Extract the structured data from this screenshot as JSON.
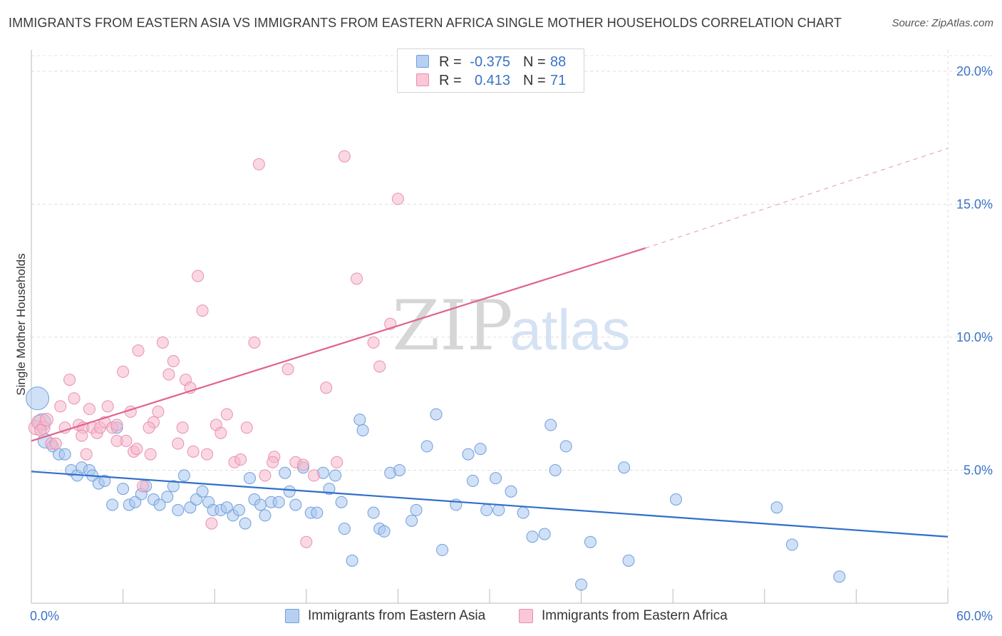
{
  "title": "IMMIGRANTS FROM EASTERN ASIA VS IMMIGRANTS FROM EASTERN AFRICA SINGLE MOTHER HOUSEHOLDS CORRELATION CHART",
  "source": "Source: ZipAtlas.com",
  "watermark": {
    "part1": "ZIP",
    "part2": "atlas"
  },
  "legend_top": {
    "rows": [
      {
        "r_label": "R =",
        "r_value": "-0.375",
        "n_label": "N =",
        "n_value": "88"
      },
      {
        "r_label": "R =",
        "r_value": "0.413",
        "n_label": "N =",
        "n_value": "71"
      }
    ]
  },
  "legend_bottom": {
    "items": [
      {
        "label": "Immigrants from Eastern Asia"
      },
      {
        "label": "Immigrants from Eastern Africa"
      }
    ]
  },
  "colors": {
    "blue_fill": "#a9c7ef",
    "blue_stroke": "#6f9fdc",
    "blue_line": "#2f6fcb",
    "pink_fill": "#f6b8cc",
    "pink_stroke": "#ea8fac",
    "pink_line": "#e0648c",
    "tick_label": "#3b73c6",
    "grid": "#dddddd"
  },
  "chart_data": {
    "type": "scatter",
    "title": "IMMIGRANTS FROM EASTERN ASIA VS IMMIGRANTS FROM EASTERN AFRICA SINGLE MOTHER HOUSEHOLDS CORRELATION CHART",
    "xlabel": "",
    "ylabel": "Single Mother Households",
    "xlim": [
      0,
      60
    ],
    "ylim": [
      0,
      20.8
    ],
    "x_tick_labels": [
      {
        "value": 0,
        "label": "0.0%"
      },
      {
        "value": 60,
        "label": "60.0%"
      }
    ],
    "x_minor_ticks": [
      0,
      6,
      12,
      18,
      24,
      30,
      36,
      42,
      48,
      54,
      60
    ],
    "y_ticks": [
      {
        "value": 5,
        "label": "5.0%"
      },
      {
        "value": 10,
        "label": "10.0%"
      },
      {
        "value": 15,
        "label": "15.0%"
      },
      {
        "value": 20,
        "label": "20.0%"
      }
    ],
    "grid": true,
    "series": [
      {
        "name": "Immigrants from Eastern Asia",
        "color": "blue",
        "r": -0.375,
        "n": 88,
        "trend": {
          "x0": 0,
          "y0": 4.95,
          "x1": 60,
          "y1": 2.5
        },
        "points": [
          [
            0.4,
            7.7,
            16
          ],
          [
            0.7,
            6.8,
            12
          ],
          [
            0.9,
            6.1,
            10
          ],
          [
            1.4,
            5.9,
            8
          ],
          [
            1.8,
            5.6,
            8
          ],
          [
            2.2,
            5.6,
            8
          ],
          [
            2.6,
            5.0,
            8
          ],
          [
            3.0,
            4.8,
            8
          ],
          [
            3.3,
            5.1,
            8
          ],
          [
            3.8,
            5.0,
            8
          ],
          [
            4.0,
            4.8,
            8
          ],
          [
            4.4,
            4.5,
            8
          ],
          [
            4.8,
            4.6,
            8
          ],
          [
            5.3,
            3.7,
            8
          ],
          [
            5.6,
            6.6,
            8
          ],
          [
            6.0,
            4.3,
            8
          ],
          [
            6.4,
            3.7,
            8
          ],
          [
            6.8,
            3.8,
            8
          ],
          [
            7.2,
            4.1,
            8
          ],
          [
            7.5,
            4.4,
            8
          ],
          [
            8.0,
            3.9,
            8
          ],
          [
            8.4,
            3.7,
            8
          ],
          [
            8.9,
            4.0,
            8
          ],
          [
            9.3,
            4.4,
            8
          ],
          [
            9.6,
            3.5,
            8
          ],
          [
            10.0,
            4.8,
            8
          ],
          [
            10.4,
            3.6,
            8
          ],
          [
            10.8,
            3.9,
            8
          ],
          [
            11.2,
            4.2,
            8
          ],
          [
            11.6,
            3.8,
            8
          ],
          [
            11.9,
            3.5,
            8
          ],
          [
            12.4,
            3.5,
            8
          ],
          [
            12.8,
            3.6,
            8
          ],
          [
            13.2,
            3.3,
            8
          ],
          [
            13.6,
            3.5,
            8
          ],
          [
            14.0,
            3.0,
            8
          ],
          [
            14.3,
            4.7,
            8
          ],
          [
            14.6,
            3.9,
            8
          ],
          [
            15.0,
            3.7,
            8
          ],
          [
            15.3,
            3.3,
            8
          ],
          [
            15.7,
            3.8,
            8
          ],
          [
            16.2,
            3.8,
            8
          ],
          [
            16.6,
            4.9,
            8
          ],
          [
            16.9,
            4.2,
            8
          ],
          [
            17.3,
            3.7,
            8
          ],
          [
            17.8,
            5.1,
            8
          ],
          [
            18.3,
            3.4,
            8
          ],
          [
            18.7,
            3.4,
            8
          ],
          [
            19.1,
            4.9,
            8
          ],
          [
            19.5,
            4.3,
            8
          ],
          [
            19.9,
            4.8,
            8
          ],
          [
            20.3,
            3.8,
            8
          ],
          [
            20.5,
            2.8,
            8
          ],
          [
            21.0,
            1.6,
            8
          ],
          [
            21.5,
            6.9,
            8
          ],
          [
            21.7,
            6.5,
            8
          ],
          [
            22.4,
            3.4,
            8
          ],
          [
            22.8,
            2.8,
            8
          ],
          [
            23.1,
            2.7,
            8
          ],
          [
            23.5,
            4.9,
            8
          ],
          [
            24.1,
            5.0,
            8
          ],
          [
            24.9,
            3.1,
            8
          ],
          [
            25.2,
            3.5,
            8
          ],
          [
            25.9,
            5.9,
            8
          ],
          [
            26.5,
            7.1,
            8
          ],
          [
            26.9,
            2.0,
            8
          ],
          [
            27.8,
            3.7,
            8
          ],
          [
            28.6,
            5.6,
            8
          ],
          [
            28.9,
            4.6,
            8
          ],
          [
            29.4,
            5.8,
            8
          ],
          [
            29.8,
            3.5,
            8
          ],
          [
            30.4,
            4.7,
            8
          ],
          [
            30.6,
            3.5,
            8
          ],
          [
            31.4,
            4.2,
            8
          ],
          [
            32.2,
            3.4,
            8
          ],
          [
            32.8,
            2.5,
            8
          ],
          [
            33.6,
            2.6,
            8
          ],
          [
            34.0,
            6.7,
            8
          ],
          [
            34.3,
            5.0,
            8
          ],
          [
            35.0,
            5.9,
            8
          ],
          [
            36.0,
            0.7,
            8
          ],
          [
            36.6,
            2.3,
            8
          ],
          [
            38.8,
            5.1,
            8
          ],
          [
            39.1,
            1.6,
            8
          ],
          [
            42.2,
            3.9,
            8
          ],
          [
            48.8,
            3.6,
            8
          ],
          [
            49.8,
            2.2,
            8
          ],
          [
            52.9,
            1.0,
            8
          ]
        ]
      },
      {
        "name": "Immigrants from Eastern Africa",
        "color": "pink",
        "r": 0.413,
        "n": 71,
        "trend": {
          "x0": 0,
          "y0": 6.1,
          "x1": 40.2,
          "y1": 13.35
        },
        "trend_dashed": {
          "x0": 40.2,
          "y0": 13.35,
          "x1": 60,
          "y1": 17.1
        },
        "points": [
          [
            0.3,
            6.6,
            10
          ],
          [
            0.5,
            6.8,
            10
          ],
          [
            0.8,
            6.6,
            9
          ],
          [
            1.0,
            6.9,
            9
          ],
          [
            1.3,
            6.0,
            8
          ],
          [
            1.6,
            6.0,
            8
          ],
          [
            1.9,
            7.4,
            8
          ],
          [
            2.2,
            6.6,
            8
          ],
          [
            2.5,
            8.4,
            8
          ],
          [
            2.8,
            7.7,
            8
          ],
          [
            3.1,
            6.7,
            8
          ],
          [
            3.4,
            6.6,
            8
          ],
          [
            3.6,
            5.6,
            8
          ],
          [
            3.8,
            7.3,
            8
          ],
          [
            4.0,
            6.6,
            8
          ],
          [
            4.3,
            6.4,
            8
          ],
          [
            4.5,
            6.6,
            8
          ],
          [
            4.8,
            6.8,
            8
          ],
          [
            5.0,
            7.4,
            8
          ],
          [
            5.3,
            6.6,
            8
          ],
          [
            5.6,
            6.7,
            8
          ],
          [
            6.0,
            8.7,
            8
          ],
          [
            6.2,
            6.1,
            8
          ],
          [
            6.5,
            7.2,
            8
          ],
          [
            6.7,
            5.7,
            8
          ],
          [
            7.0,
            9.5,
            8
          ],
          [
            7.3,
            4.4,
            8
          ],
          [
            7.8,
            5.6,
            8
          ],
          [
            8.0,
            6.8,
            8
          ],
          [
            8.3,
            7.2,
            8
          ],
          [
            8.6,
            9.8,
            8
          ],
          [
            9.0,
            8.6,
            8
          ],
          [
            9.3,
            9.1,
            8
          ],
          [
            9.6,
            6.0,
            8
          ],
          [
            10.1,
            8.4,
            8
          ],
          [
            10.4,
            8.1,
            8
          ],
          [
            10.6,
            5.7,
            8
          ],
          [
            10.9,
            12.3,
            8
          ],
          [
            11.2,
            11.0,
            8
          ],
          [
            11.5,
            5.6,
            8
          ],
          [
            11.8,
            3.0,
            8
          ],
          [
            12.1,
            6.7,
            8
          ],
          [
            12.4,
            6.4,
            8
          ],
          [
            12.8,
            7.1,
            8
          ],
          [
            13.3,
            5.3,
            8
          ],
          [
            13.7,
            5.4,
            8
          ],
          [
            14.1,
            6.6,
            8
          ],
          [
            14.6,
            9.8,
            8
          ],
          [
            14.9,
            16.5,
            8
          ],
          [
            15.3,
            4.8,
            8
          ],
          [
            15.9,
            5.5,
            8
          ],
          [
            16.8,
            8.8,
            8
          ],
          [
            17.3,
            5.3,
            8
          ],
          [
            17.8,
            5.2,
            8
          ],
          [
            18.5,
            4.8,
            8
          ],
          [
            19.3,
            8.1,
            8
          ],
          [
            20.0,
            5.3,
            8
          ],
          [
            20.5,
            16.8,
            8
          ],
          [
            21.3,
            12.2,
            8
          ],
          [
            22.4,
            9.8,
            8
          ],
          [
            22.8,
            8.9,
            8
          ],
          [
            23.5,
            10.5,
            8
          ],
          [
            24.0,
            15.2,
            8
          ],
          [
            15.8,
            5.3,
            8
          ],
          [
            18.0,
            2.3,
            8
          ],
          [
            6.9,
            5.8,
            8
          ],
          [
            9.9,
            6.6,
            8
          ],
          [
            3.3,
            6.3,
            8
          ],
          [
            5.6,
            6.1,
            8
          ],
          [
            7.7,
            6.6,
            8
          ],
          [
            0.6,
            6.5,
            8
          ]
        ]
      }
    ]
  }
}
